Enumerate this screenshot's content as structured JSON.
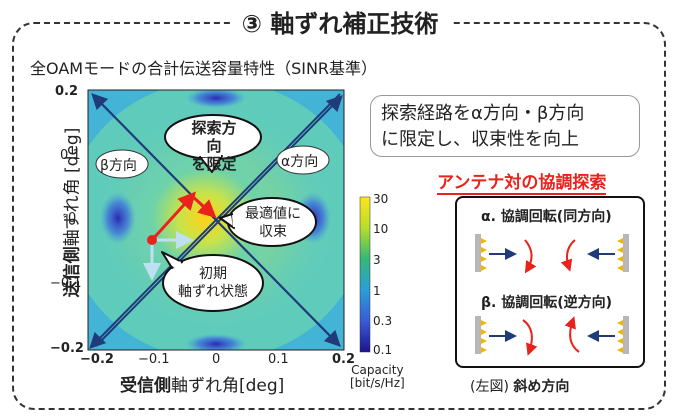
{
  "title": "③ 軸ずれ補正技術",
  "subtitle": "全OAMモードの合計伝送容量特性（SINR基準）",
  "plot": {
    "x_label_bold": "受信側",
    "x_label_rest": "軸ずれ角[deg]",
    "y_label_bold": "送信側",
    "y_label_rest": "軸ずれ角 [deg]",
    "x_ticks": [
      "−0.2",
      "−0.1",
      "0",
      "0.1",
      "0.2"
    ],
    "y_ticks": [
      "0.2",
      "0.1",
      "0",
      "−0.1",
      "−0.2"
    ],
    "colorbar_ticks": [
      "30",
      "10",
      "3",
      "1",
      "0.3",
      "0.1"
    ],
    "colorbar_label_1": "Capacity",
    "colorbar_label_2": "[bit/s/Hz]",
    "callouts": {
      "search_1": "探索方向",
      "search_2": "を限定",
      "beta": "β方向",
      "alpha": "α方向",
      "optimum_1": "最適値に",
      "optimum_2": "収束",
      "initial_1": "初期",
      "initial_2": "軸ずれ状態"
    }
  },
  "note": {
    "line1": "探索経路をα方向・β方向",
    "line2": "に限定し、収束性を向上"
  },
  "antenna": {
    "title": "アンテナ対の協調探索",
    "alpha_label": "α. 協調回転(同方向)",
    "beta_label": "β. 協調回転(逆方向)",
    "caption_prefix": "(左図)",
    "caption_bold": "斜め方向"
  },
  "colors": {
    "accent": "#e8231c",
    "arrow": "#1f3b7a"
  }
}
